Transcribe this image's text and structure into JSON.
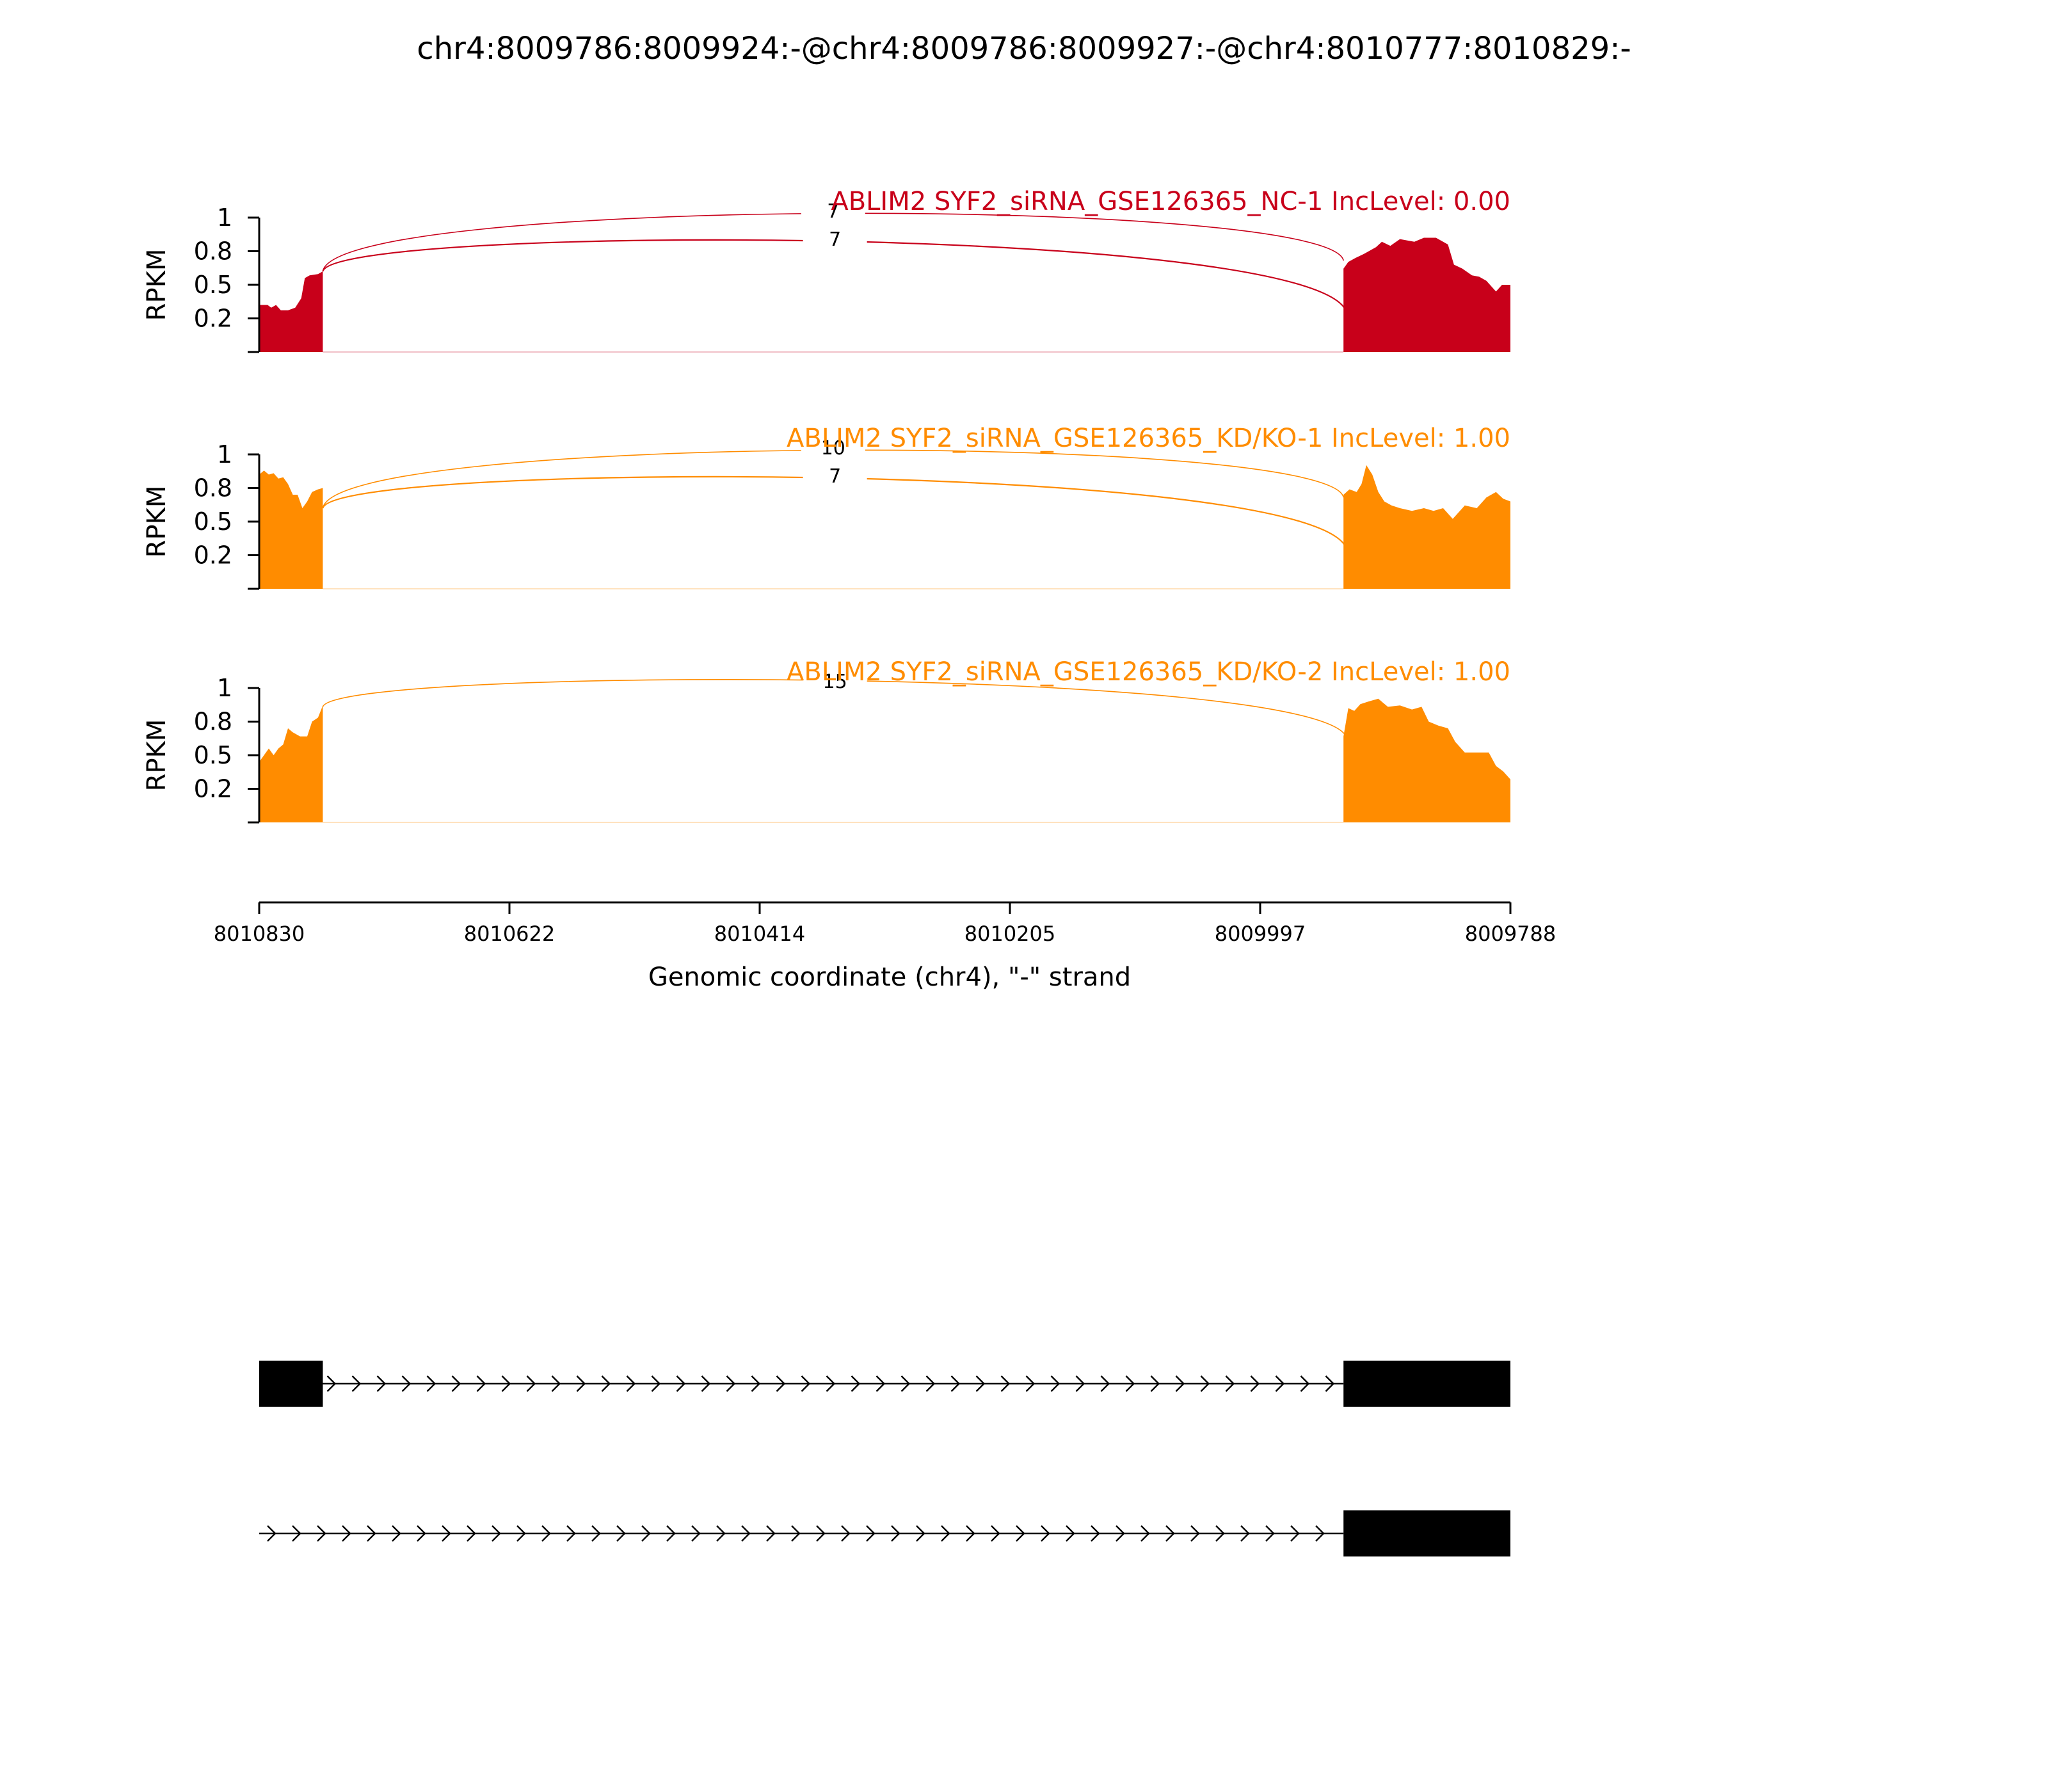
{
  "chart_data": {
    "type": "sashimi",
    "title": "chr4:8009786:8009924:-@chr4:8009786:8009927:-@chr4:8010777:8010829:-",
    "xlabel": "Genomic coordinate (chr4), \"-\" strand",
    "x_ticks": [
      "8010830",
      "8010622",
      "8010414",
      "8010205",
      "8009997",
      "8009788"
    ],
    "xlim": [
      8010830,
      8009788
    ],
    "ylabel": "RPKM",
    "y_ticks": [
      "1",
      "0.8",
      "0.5",
      "0.2"
    ],
    "ylim": [
      0,
      1
    ],
    "tracks": [
      {
        "title": "ABLIM2 SYF2_siRNA_GSE126365_NC-1 IncLevel: 0.00",
        "color": "#c8001a",
        "junctions": [
          {
            "label": "7",
            "from": 8010777,
            "to": 8009927
          },
          {
            "label": "7",
            "from": 8010777,
            "to": 8009924
          }
        ]
      },
      {
        "title": "ABLIM2 SYF2_siRNA_GSE126365_KD/KO-1 IncLevel: 1.00",
        "color": "#ff8c00",
        "junctions": [
          {
            "label": "10",
            "from": 8010777,
            "to": 8009927
          },
          {
            "label": "7",
            "from": 8010777,
            "to": 8009924
          }
        ]
      },
      {
        "title": "ABLIM2 SYF2_siRNA_GSE126365_KD/KO-2 IncLevel: 1.00",
        "color": "#ff8c00",
        "junctions": [
          {
            "label": "15",
            "from": 8010777,
            "to": 8009924
          }
        ]
      }
    ],
    "coverage_profiles": [
      {
        "exon1": [
          [
            8010830,
            0.35
          ],
          [
            8010823,
            0.35
          ],
          [
            8010820,
            0.33
          ],
          [
            8010816,
            0.35
          ],
          [
            8010812,
            0.31
          ],
          [
            8010806,
            0.31
          ],
          [
            8010800,
            0.33
          ],
          [
            8010795,
            0.4
          ],
          [
            8010792,
            0.55
          ],
          [
            8010788,
            0.57
          ],
          [
            8010781,
            0.58
          ],
          [
            8010777,
            0.6
          ]
        ],
        "exon2": [
          [
            8009927,
            0.62
          ],
          [
            8009923,
            0.67
          ],
          [
            8009917,
            0.7
          ],
          [
            8009910,
            0.73
          ],
          [
            8009900,
            0.78
          ],
          [
            8009895,
            0.82
          ],
          [
            8009888,
            0.79
          ],
          [
            8009880,
            0.84
          ],
          [
            8009868,
            0.82
          ],
          [
            8009860,
            0.85
          ],
          [
            8009850,
            0.85
          ],
          [
            8009840,
            0.8
          ],
          [
            8009835,
            0.65
          ],
          [
            8009828,
            0.62
          ],
          [
            8009820,
            0.57
          ],
          [
            8009814,
            0.56
          ],
          [
            8009808,
            0.53
          ],
          [
            8009800,
            0.45
          ],
          [
            8009795,
            0.5
          ],
          [
            8009788,
            0.5
          ]
        ]
      },
      {
        "exon1": [
          [
            8010830,
            0.85
          ],
          [
            8010826,
            0.88
          ],
          [
            8010822,
            0.85
          ],
          [
            8010818,
            0.86
          ],
          [
            8010814,
            0.82
          ],
          [
            8010810,
            0.83
          ],
          [
            8010806,
            0.78
          ],
          [
            8010802,
            0.7
          ],
          [
            8010798,
            0.7
          ],
          [
            8010794,
            0.6
          ],
          [
            8010790,
            0.65
          ],
          [
            8010786,
            0.72
          ],
          [
            8010781,
            0.74
          ],
          [
            8010777,
            0.75
          ]
        ],
        "exon2": [
          [
            8009927,
            0.7
          ],
          [
            8009922,
            0.74
          ],
          [
            8009916,
            0.72
          ],
          [
            8009912,
            0.78
          ],
          [
            8009908,
            0.92
          ],
          [
            8009903,
            0.85
          ],
          [
            8009898,
            0.72
          ],
          [
            8009893,
            0.65
          ],
          [
            8009887,
            0.62
          ],
          [
            8009880,
            0.6
          ],
          [
            8009870,
            0.58
          ],
          [
            8009860,
            0.6
          ],
          [
            8009852,
            0.58
          ],
          [
            8009844,
            0.6
          ],
          [
            8009836,
            0.52
          ],
          [
            8009826,
            0.62
          ],
          [
            8009816,
            0.6
          ],
          [
            8009808,
            0.68
          ],
          [
            8009800,
            0.72
          ],
          [
            8009794,
            0.67
          ],
          [
            8009788,
            0.65
          ]
        ]
      },
      {
        "exon1": [
          [
            8010830,
            0.45
          ],
          [
            8010826,
            0.5
          ],
          [
            8010822,
            0.55
          ],
          [
            8010818,
            0.5
          ],
          [
            8010814,
            0.55
          ],
          [
            8010810,
            0.58
          ],
          [
            8010806,
            0.7
          ],
          [
            8010802,
            0.67
          ],
          [
            8010796,
            0.64
          ],
          [
            8010790,
            0.64
          ],
          [
            8010786,
            0.75
          ],
          [
            8010781,
            0.78
          ],
          [
            8010777,
            0.87
          ]
        ],
        "exon2": [
          [
            8009927,
            0.64
          ],
          [
            8009923,
            0.85
          ],
          [
            8009918,
            0.83
          ],
          [
            8009913,
            0.88
          ],
          [
            8009906,
            0.9
          ],
          [
            8009898,
            0.92
          ],
          [
            8009890,
            0.86
          ],
          [
            8009880,
            0.87
          ],
          [
            8009870,
            0.84
          ],
          [
            8009862,
            0.86
          ],
          [
            8009856,
            0.75
          ],
          [
            8009848,
            0.72
          ],
          [
            8009840,
            0.7
          ],
          [
            8009834,
            0.6
          ],
          [
            8009826,
            0.52
          ],
          [
            8009816,
            0.52
          ],
          [
            8009806,
            0.52
          ],
          [
            8009800,
            0.42
          ],
          [
            8009794,
            0.38
          ],
          [
            8009788,
            0.32
          ]
        ]
      }
    ],
    "isoforms": [
      {
        "exons": [
          [
            8010830,
            8010777
          ],
          [
            8009927,
            8009788
          ]
        ]
      },
      {
        "exons": [
          [
            8009927,
            8009788
          ]
        ]
      }
    ]
  }
}
